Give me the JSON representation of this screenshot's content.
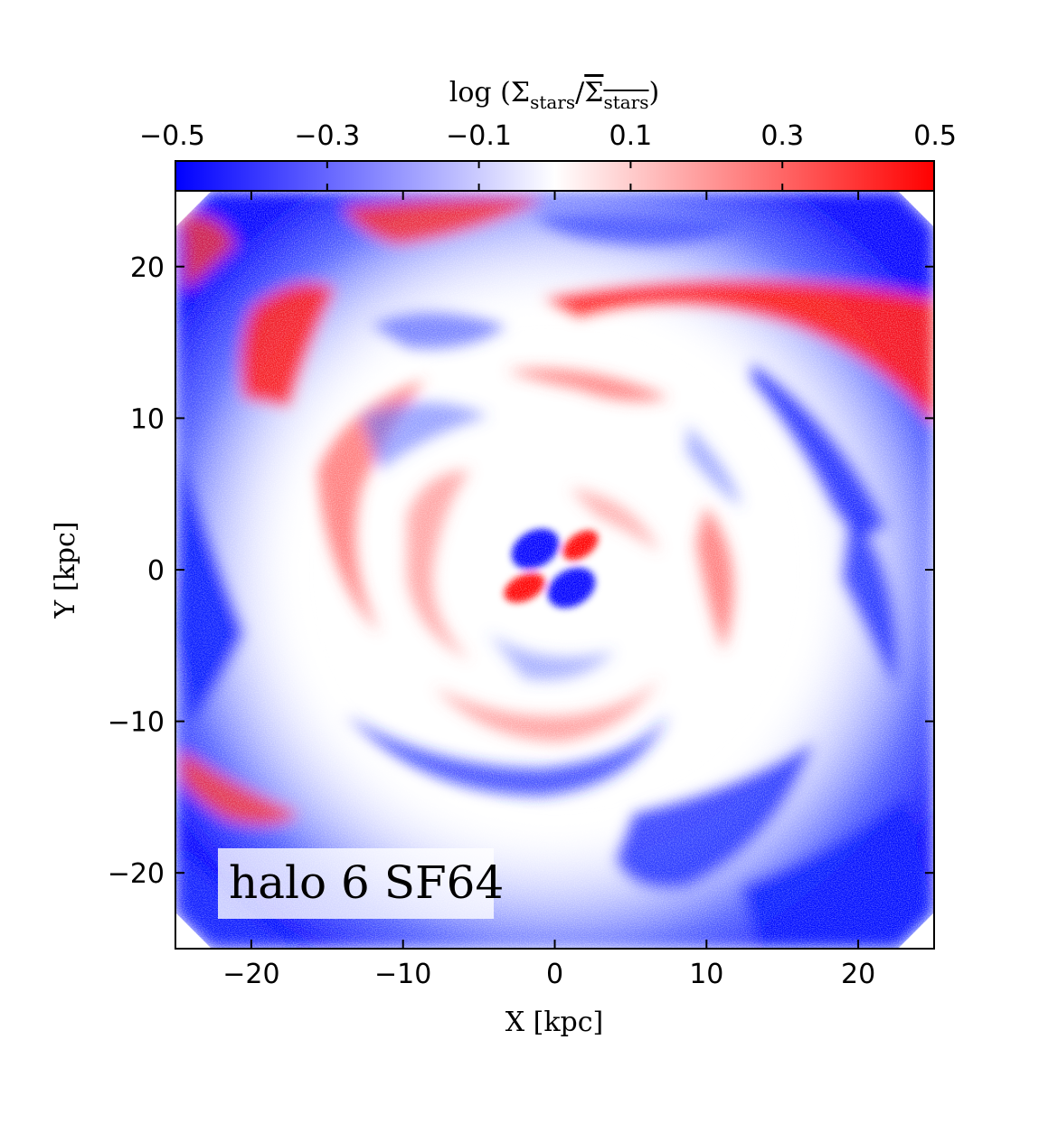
{
  "chart_data": {
    "type": "heatmap",
    "xlabel": "X [kpc]",
    "ylabel": "Y [kpc]",
    "xlim": [
      -25,
      25
    ],
    "ylim": [
      -25,
      25
    ],
    "x_ticks": [
      -20,
      -10,
      0,
      10,
      20
    ],
    "y_ticks": [
      -20,
      -10,
      0,
      10,
      20
    ],
    "x_tick_labels": [
      "−20",
      "−10",
      "0",
      "10",
      "20"
    ],
    "y_tick_labels": [
      "−20",
      "−10",
      "0",
      "10",
      "20"
    ],
    "colorbar": {
      "label_text": "log (Σ",
      "label_subscript": "stars",
      "label_slash": "/",
      "label_bar": "Σ",
      "label_bar_subscript": "stars",
      "label_close": ")",
      "range": [
        -0.5,
        0.5
      ],
      "ticks": [
        -0.5,
        -0.3,
        -0.1,
        0.1,
        0.3,
        0.5
      ],
      "tick_labels": [
        "−0.5",
        "−0.3",
        "−0.1",
        "0.1",
        "0.3",
        "0.5"
      ],
      "colormap": "bwr",
      "low_color": "#0000ff",
      "mid_color": "#ffffff",
      "high_color": "#ff0000",
      "position": "top"
    },
    "annotation": "halo 6 SF64",
    "annotation_position": "bottom-left",
    "grid": false
  }
}
